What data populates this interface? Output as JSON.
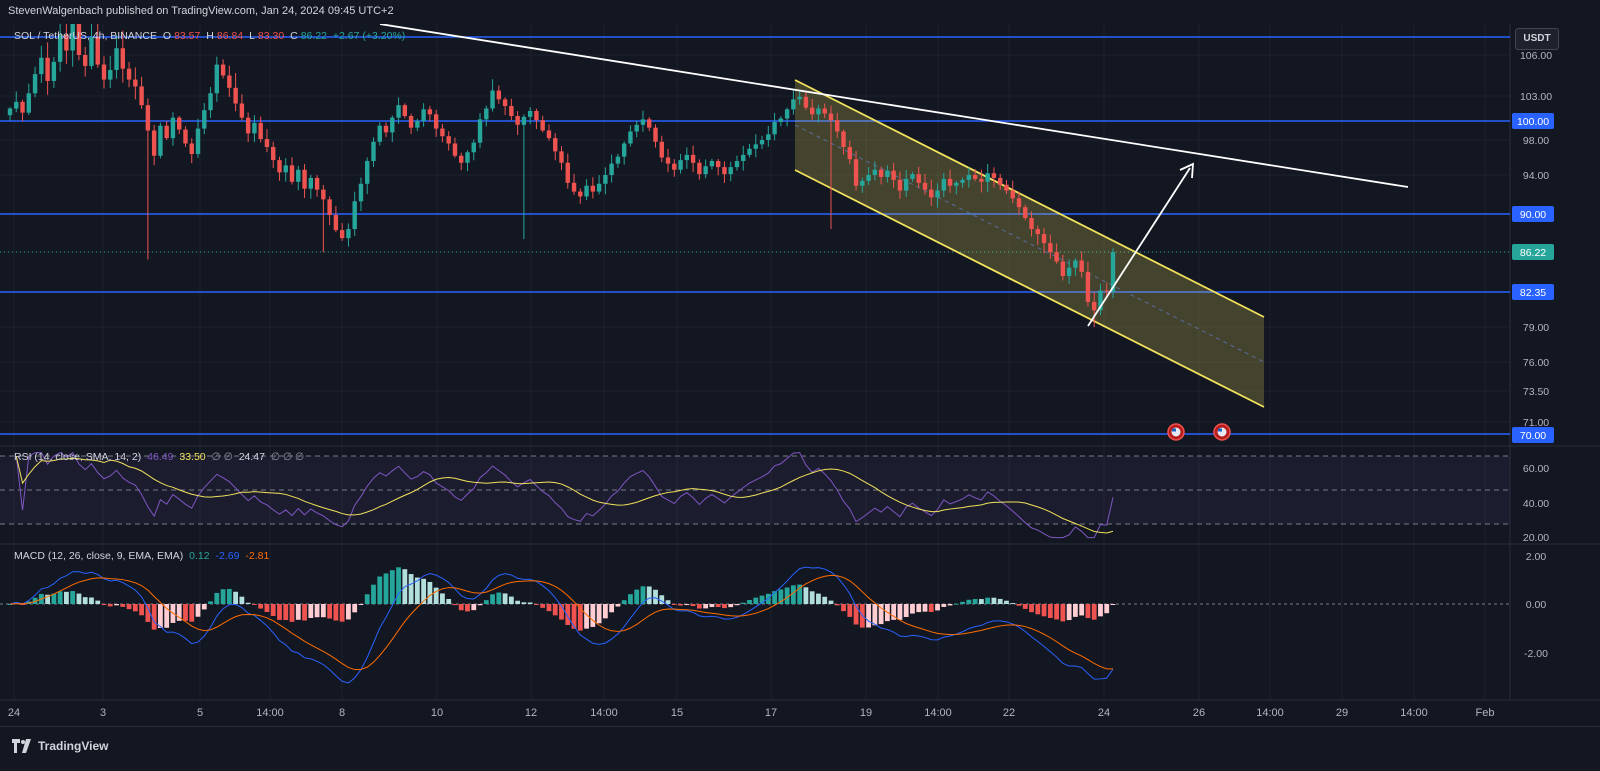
{
  "header": {
    "published": "StevenWalgenbach published on TradingView.com, Jan 24, 2024 09:45 UTC+2"
  },
  "footer": {
    "brand": "TradingView"
  },
  "currency_button": "USDT",
  "legend": {
    "symbol": "SOL / TetherUS, 4h, BINANCE",
    "o_label": "O",
    "o": "83.57",
    "h_label": "H",
    "h": "86.84",
    "l_label": "L",
    "l": "83.30",
    "c_label": "C",
    "c": "86.22",
    "change": "+2.67 (+3.20%)"
  },
  "rsi_legend": {
    "name": "RSI (14, close, SMA, 14, 2)",
    "v1": "46.49",
    "v2": "33.50",
    "mid": "∅ ∅",
    "v3": "24.47",
    "tail": "∅ ∅ ∅"
  },
  "macd_legend": {
    "name": "MACD (12, 26, close, 9, EMA, EMA)",
    "v1": "0.12",
    "v2": "-2.69",
    "v3": "-2.81"
  },
  "colors": {
    "background": "#131722",
    "bull": "#26a69a",
    "bear": "#ef5350",
    "level": "#2962ff",
    "channel": "#f2e25c",
    "rsi": "#7e57c2",
    "macd": "#2962ff",
    "signal": "#ff6d00"
  },
  "chart_data": [
    {
      "type": "candlestick",
      "title": "SOL / TetherUS, 4h, BINANCE",
      "x_tick_labels": [
        "24",
        "3",
        "5",
        "14:00",
        "8",
        "10",
        "12",
        "14:00",
        "15",
        "17",
        "19",
        "14:00",
        "22",
        "24",
        "26",
        "14:00",
        "29",
        "14:00",
        "Feb"
      ],
      "y_tick_labels": [
        "106.00",
        "103.00",
        "98.00",
        "94.00",
        "90.00",
        "79.00",
        "76.00",
        "73.50",
        "71.00",
        "70.00"
      ],
      "last_price_label": "86.22",
      "ylim": [
        70,
        106.5
      ],
      "horizontal_levels": [
        {
          "value": 106.8,
          "label": ""
        },
        {
          "value": 100.0,
          "label": "100.00"
        },
        {
          "value": 90.0,
          "label": "90.00"
        },
        {
          "value": 82.35,
          "label": "82.35"
        },
        {
          "value": 70.0,
          "label": "70.00"
        }
      ],
      "closes": [
        101.5,
        102.3,
        101.0,
        103.2,
        104.6,
        105.8,
        104.1,
        105.5,
        106.9,
        106.2,
        107.4,
        106.0,
        105.2,
        106.8,
        105.3,
        104.2,
        104.9,
        106.3,
        105.0,
        104.2,
        103.7,
        101.9,
        99.0,
        96.2,
        99.5,
        98.2,
        100.4,
        99.1,
        97.6,
        96.4,
        99.2,
        101.3,
        103.2,
        105.3,
        104.5,
        103.6,
        102.1,
        100.4,
        98.7,
        99.8,
        98.1,
        97.2,
        95.7,
        94.3,
        95.1,
        93.3,
        94.6,
        92.6,
        93.7,
        92.5,
        91.5,
        89.9,
        88.4,
        87.6,
        88.5,
        91.3,
        93.1,
        95.6,
        97.8,
        99.5,
        98.8,
        100.4,
        101.9,
        100.6,
        99.3,
        100.0,
        101.4,
        100.8,
        99.2,
        98.4,
        97.6,
        96.2,
        95.4,
        96.6,
        97.7,
        100.2,
        101.5,
        103.4,
        102.6,
        101.8,
        100.6,
        99.6,
        100.5,
        101.2,
        100.1,
        99.0,
        98.2,
        96.7,
        95.4,
        93.2,
        92.3,
        91.8,
        92.9,
        92.3,
        93.1,
        94.0,
        95.3,
        96.1,
        97.6,
        98.9,
        99.6,
        100.2,
        99.3,
        97.8,
        96.0,
        95.3,
        94.6,
        95.7,
        96.3,
        95.4,
        94.1,
        95.0,
        95.6,
        94.9,
        94.1,
        94.9,
        95.6,
        96.3,
        97.0,
        97.5,
        98.0,
        98.6,
        99.9,
        100.3,
        101.4,
        102.6,
        102.9,
        101.6,
        100.8,
        101.5,
        100.9,
        100.1,
        98.9,
        97.2,
        95.8,
        92.9,
        93.4,
        94.0,
        94.6,
        93.8,
        94.5,
        93.5,
        92.4,
        93.6,
        94.1,
        93.2,
        92.5,
        91.7,
        92.4,
        93.6,
        92.9,
        93.2,
        93.5,
        94.0,
        93.6,
        93.3,
        94.2,
        93.7,
        93.0,
        92.4,
        91.6,
        90.7,
        89.6,
        88.5,
        88.0,
        87.1,
        86.2,
        85.3,
        83.9,
        84.7,
        85.4,
        84.3,
        81.4,
        80.6,
        82.5,
        82.4,
        86.22
      ],
      "rsi": {
        "ylim": [
          20,
          70
        ],
        "y_tick_labels": [
          "60.00",
          "40.00",
          "20.00"
        ],
        "bands": [
          70,
          50,
          30
        ],
        "values": [
          "46.49",
          "33.50"
        ]
      },
      "macd": {
        "y_tick_labels": [
          "2.00",
          "0.00",
          "-2.00"
        ],
        "values": [
          "0.12",
          "-2.69",
          "-2.81"
        ]
      }
    }
  ]
}
